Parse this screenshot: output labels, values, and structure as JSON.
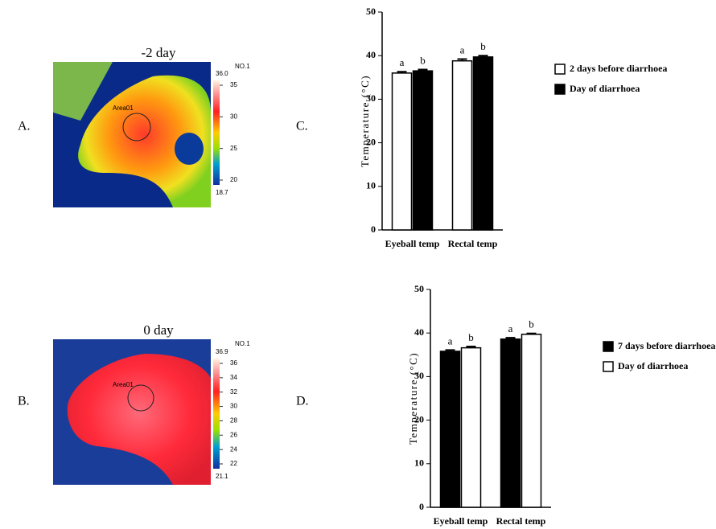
{
  "panel_labels": [
    "A.",
    "B.",
    "C.",
    "D."
  ],
  "images": [
    {
      "caption": "-2 day",
      "id": "NO.1",
      "spot": "Area01",
      "colorbar_max": "36.0",
      "colorbar_ticks": [
        "35",
        "30",
        "25",
        "20"
      ],
      "colorbar_min": "18.7"
    },
    {
      "caption": "0 day",
      "id": "NO.1",
      "spot": "Area01",
      "colorbar_max": "36.9",
      "colorbar_ticks": [
        "36",
        "34",
        "32",
        "30",
        "28",
        "26",
        "24",
        "22"
      ],
      "colorbar_min": "21.1"
    }
  ],
  "chart_data": [
    {
      "type": "bar",
      "ylabel": "Temperature (°C)",
      "categories": [
        "Eyeball temp",
        "Rectal temp"
      ],
      "series": [
        {
          "name": "2 days before diarrhoea",
          "color": "#ffffff",
          "values": [
            36,
            38.8
          ],
          "errors": [
            0.3,
            0.4
          ],
          "letters": [
            "a",
            "a"
          ]
        },
        {
          "name": "Day of diarrhoea",
          "color": "#000000",
          "values": [
            36.5,
            39.7
          ],
          "errors": [
            0.3,
            0.3
          ],
          "letters": [
            "b",
            "b"
          ]
        }
      ],
      "ylim": [
        0,
        50
      ],
      "yticks": [
        0,
        10,
        20,
        30,
        40,
        50
      ],
      "legend": "right"
    },
    {
      "type": "bar",
      "ylabel": "Temperature (°C)",
      "categories": [
        "Eyeball temp",
        "Rectal temp"
      ],
      "series": [
        {
          "name": "7 days before diarrhoea",
          "color": "#000000",
          "values": [
            35.8,
            38.6
          ],
          "errors": [
            0.3,
            0.3
          ],
          "letters": [
            "a",
            "a"
          ]
        },
        {
          "name": "Day of diarrhoea",
          "color": "#ffffff",
          "values": [
            36.6,
            39.7
          ],
          "errors": [
            0.3,
            0.2
          ],
          "letters": [
            "b",
            "b"
          ]
        }
      ],
      "ylim": [
        0,
        50
      ],
      "yticks": [
        0,
        10,
        20,
        30,
        40,
        50
      ],
      "legend": "right"
    }
  ]
}
